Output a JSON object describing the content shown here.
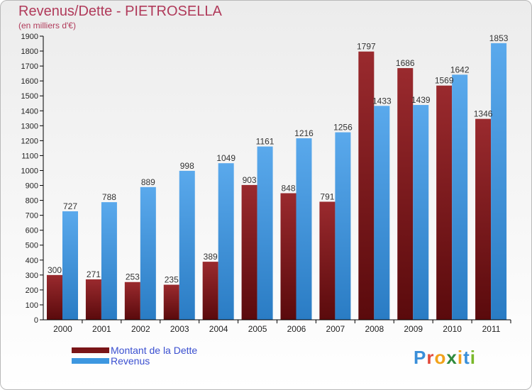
{
  "chart_data": {
    "type": "bar",
    "title": "Revenus/Dette - PIETROSELLA",
    "subtitle": "(en milliers d'€)",
    "categories": [
      "2000",
      "2001",
      "2002",
      "2003",
      "2004",
      "2005",
      "2006",
      "2007",
      "2008",
      "2009",
      "2010",
      "2011"
    ],
    "series": [
      {
        "name": "Montant de la Dette",
        "color": "#7a1518",
        "values": [
          300,
          271,
          253,
          235,
          389,
          903,
          848,
          791,
          1797,
          1686,
          1569,
          1346
        ]
      },
      {
        "name": "Revenus",
        "color": "#3d97e0",
        "values": [
          727,
          788,
          889,
          998,
          1049,
          1161,
          1216,
          1256,
          1433,
          1439,
          1642,
          1853
        ]
      }
    ],
    "ylim": [
      0,
      1900
    ],
    "ytick_step": 100,
    "grid": false,
    "legend_position": "bottom-left"
  },
  "logo": {
    "letters": [
      "P",
      "r",
      "o",
      "x",
      "i",
      "t",
      "i"
    ],
    "colors": [
      "#3a8fd9",
      "#e24a3b",
      "#f2a21b",
      "#2f8a3c",
      "#f2a21b",
      "#3a8fd9",
      "#79b829"
    ]
  }
}
